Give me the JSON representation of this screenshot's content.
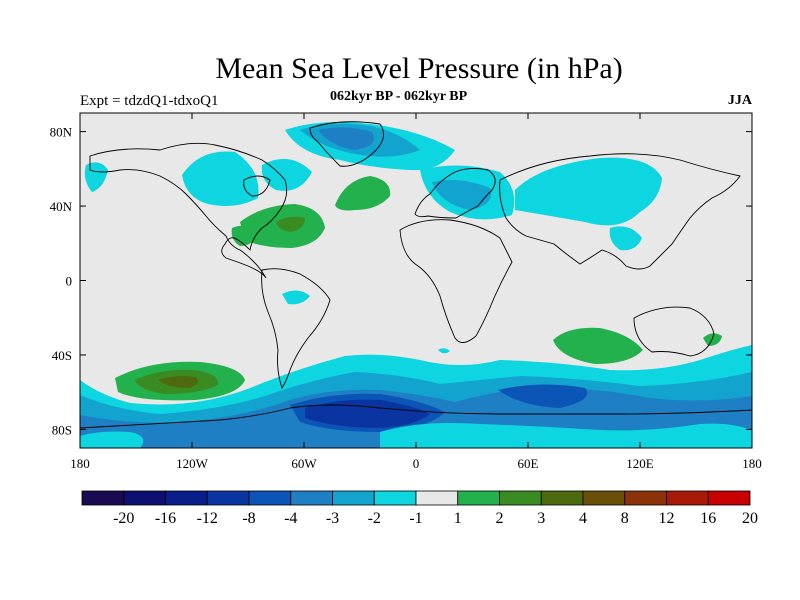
{
  "title": "Mean Sea Level Pressure (in hPa)",
  "subtitle_left": "Expt = tdzdQ1-tdxoQ1",
  "subtitle_center": "062kyr BP - 062kyr BP",
  "subtitle_right": "JJA",
  "chart_data": {
    "type": "heatmap",
    "title": "Mean Sea Level Pressure (in hPa)",
    "variable": "Mean Sea Level Pressure difference",
    "units": "hPa",
    "season": "JJA",
    "x_ticks": [
      "180",
      "120W",
      "60W",
      "0",
      "60E",
      "120E",
      "180"
    ],
    "y_ticks": [
      "80N",
      "40N",
      "0",
      "40S",
      "80S"
    ],
    "xlim": [
      -180,
      180
    ],
    "ylim": [
      -90,
      90
    ],
    "colorbar": {
      "labels": [
        "-20",
        "-16",
        "-12",
        "-8",
        "-4",
        "-3",
        "-2",
        "-1",
        "1",
        "2",
        "3",
        "4",
        "8",
        "12",
        "16",
        "20"
      ],
      "colors": [
        "#1a0a52",
        "#0c0f70",
        "#091e8a",
        "#0a35a0",
        "#0a55b5",
        "#1e7fc5",
        "#13a3cf",
        "#0dd6e0",
        "#e8e8e8",
        "#22b14c",
        "#3a8c22",
        "#4d6b0e",
        "#6a4f08",
        "#8b3208",
        "#a81a08",
        "#c80000"
      ]
    },
    "regions": [
      {
        "name": "North Pacific small trough",
        "lon": -164,
        "lat": 55,
        "value": "-2"
      },
      {
        "name": "North America / Canada trough",
        "lon": -105,
        "lat": 57,
        "value": "-2"
      },
      {
        "name": "Greenland low",
        "lon": -40,
        "lat": 75,
        "value": "-4"
      },
      {
        "name": "Eastern US / subtropical Atlantic high",
        "lon": -65,
        "lat": 30,
        "value": "4"
      },
      {
        "name": "Gulf of Mexico high",
        "lon": -88,
        "lat": 25,
        "value": "2"
      },
      {
        "name": "Mid-Atlantic high",
        "lon": -27,
        "lat": 48,
        "value": "2"
      },
      {
        "name": "Europe / Mediterranean low",
        "lon": 15,
        "lat": 45,
        "value": "-3"
      },
      {
        "name": "Central Asia low",
        "lon": 85,
        "lat": 53,
        "value": "-2"
      },
      {
        "name": "South Atlantic weak low",
        "lon": -67,
        "lat": -8,
        "value": "-2"
      },
      {
        "name": "South Pacific high",
        "lon": -130,
        "lat": -53,
        "value": "3"
      },
      {
        "name": "South Indian Ocean high",
        "lon": 100,
        "lat": -35,
        "value": "2"
      },
      {
        "name": "Tasman Sea high",
        "lon": 157,
        "lat": -31,
        "value": "2"
      },
      {
        "name": "Southern Ocean ring",
        "lon": 0,
        "lat": -62,
        "value": "-3"
      },
      {
        "name": "Weddell Sea / Antarctic low",
        "lon": -40,
        "lat": -72,
        "value": "-8"
      },
      {
        "name": "South Indian Ocean low",
        "lon": 75,
        "lat": -60,
        "value": "-4"
      }
    ]
  }
}
